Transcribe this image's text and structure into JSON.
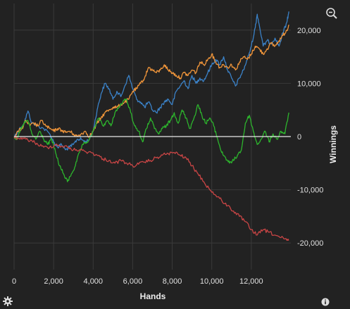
{
  "colors": {
    "background": "#222222",
    "grid": "#3a3a3a",
    "zero_line": "#e8e8e8",
    "blue": "#3b82c8",
    "orange": "#f0953a",
    "green": "#2db52d",
    "red": "#c94545"
  },
  "icons": {
    "zoom": "zoom-out-icon",
    "settings": "gear-icon",
    "info": "info-icon"
  },
  "chart_data": {
    "type": "line",
    "title": "",
    "xlabel": "Hands",
    "ylabel": "Winnings",
    "xlim": [
      0,
      14000
    ],
    "ylim": [
      -25000,
      25000
    ],
    "x_ticks": [
      0,
      2000,
      4000,
      6000,
      8000,
      10000,
      12000
    ],
    "x_tick_labels": [
      "0",
      "2,000",
      "4,000",
      "6,000",
      "8,000",
      "10,000",
      "12,000"
    ],
    "y_ticks": [
      -20000,
      -10000,
      0,
      10000,
      20000
    ],
    "y_tick_labels": [
      "-20,000",
      "-10,000",
      "0",
      "10,000",
      "20,000"
    ],
    "y_axis_position": "right",
    "grid": true,
    "zero_line": true,
    "series": [
      {
        "color": "#3b82c8",
        "points": [
          [
            0,
            0
          ],
          [
            200,
            1000
          ],
          [
            500,
            2500
          ],
          [
            700,
            4800
          ],
          [
            900,
            2500
          ],
          [
            1200,
            2000
          ],
          [
            1500,
            1500
          ],
          [
            1800,
            500
          ],
          [
            2000,
            -1000
          ],
          [
            2200,
            -2000
          ],
          [
            2400,
            -1500
          ],
          [
            2600,
            -2500
          ],
          [
            2800,
            -2000
          ],
          [
            3000,
            -1500
          ],
          [
            3200,
            -500
          ],
          [
            3400,
            -500
          ],
          [
            3600,
            -1000
          ],
          [
            3800,
            -500
          ],
          [
            4000,
            1000
          ],
          [
            4200,
            5000
          ],
          [
            4400,
            8000
          ],
          [
            4600,
            10000
          ],
          [
            4800,
            9000
          ],
          [
            5000,
            7000
          ],
          [
            5200,
            8500
          ],
          [
            5400,
            7500
          ],
          [
            5600,
            9500
          ],
          [
            5800,
            11500
          ],
          [
            6000,
            9000
          ],
          [
            6200,
            7000
          ],
          [
            6400,
            6500
          ],
          [
            6600,
            5500
          ],
          [
            6800,
            6500
          ],
          [
            7000,
            5000
          ],
          [
            7200,
            4500
          ],
          [
            7400,
            5500
          ],
          [
            7600,
            6500
          ],
          [
            7800,
            7000
          ],
          [
            8000,
            6000
          ],
          [
            8200,
            8500
          ],
          [
            8400,
            9500
          ],
          [
            8600,
            10500
          ],
          [
            8800,
            9000
          ],
          [
            9000,
            11500
          ],
          [
            9200,
            10000
          ],
          [
            9400,
            11000
          ],
          [
            9600,
            10500
          ],
          [
            9800,
            12000
          ],
          [
            10000,
            13500
          ],
          [
            10200,
            14500
          ],
          [
            10400,
            13500
          ],
          [
            10600,
            15000
          ],
          [
            10800,
            12500
          ],
          [
            11000,
            11000
          ],
          [
            11200,
            9500
          ],
          [
            11400,
            11000
          ],
          [
            11600,
            12500
          ],
          [
            11800,
            14500
          ],
          [
            12000,
            17000
          ],
          [
            12200,
            20500
          ],
          [
            12300,
            23000
          ],
          [
            12400,
            21000
          ],
          [
            12600,
            17000
          ],
          [
            12800,
            18000
          ],
          [
            13000,
            17500
          ],
          [
            13200,
            18500
          ],
          [
            13400,
            17000
          ],
          [
            13600,
            19500
          ],
          [
            13800,
            21500
          ],
          [
            13900,
            23500
          ]
        ]
      },
      {
        "color": "#f0953a",
        "points": [
          [
            0,
            0
          ],
          [
            200,
            1000
          ],
          [
            400,
            1500
          ],
          [
            600,
            3000
          ],
          [
            800,
            2000
          ],
          [
            1000,
            2500
          ],
          [
            1200,
            2000
          ],
          [
            1400,
            3000
          ],
          [
            1600,
            2000
          ],
          [
            1800,
            1500
          ],
          [
            2000,
            1000
          ],
          [
            2200,
            1500
          ],
          [
            2400,
            1200
          ],
          [
            2600,
            800
          ],
          [
            2800,
            1000
          ],
          [
            3000,
            500
          ],
          [
            3200,
            0
          ],
          [
            3400,
            500
          ],
          [
            3600,
            1000
          ],
          [
            3800,
            0
          ],
          [
            4000,
            1000
          ],
          [
            4200,
            2500
          ],
          [
            4400,
            3500
          ],
          [
            4600,
            4500
          ],
          [
            4800,
            5000
          ],
          [
            5000,
            5500
          ],
          [
            5200,
            5500
          ],
          [
            5400,
            6000
          ],
          [
            5600,
            6500
          ],
          [
            5800,
            7000
          ],
          [
            6000,
            8500
          ],
          [
            6200,
            9000
          ],
          [
            6400,
            10000
          ],
          [
            6600,
            11000
          ],
          [
            6800,
            13000
          ],
          [
            7000,
            12500
          ],
          [
            7200,
            12000
          ],
          [
            7400,
            12500
          ],
          [
            7600,
            13500
          ],
          [
            7800,
            12500
          ],
          [
            8000,
            12000
          ],
          [
            8200,
            11500
          ],
          [
            8400,
            11000
          ],
          [
            8600,
            12000
          ],
          [
            8800,
            11500
          ],
          [
            9000,
            12500
          ],
          [
            9200,
            12000
          ],
          [
            9400,
            14000
          ],
          [
            9600,
            13500
          ],
          [
            9800,
            14500
          ],
          [
            10000,
            15500
          ],
          [
            10200,
            14000
          ],
          [
            10400,
            13000
          ],
          [
            10600,
            13500
          ],
          [
            10800,
            13000
          ],
          [
            11000,
            13500
          ],
          [
            11200,
            12500
          ],
          [
            11400,
            14000
          ],
          [
            11600,
            15000
          ],
          [
            11800,
            14500
          ],
          [
            12000,
            15500
          ],
          [
            12200,
            17000
          ],
          [
            12400,
            16500
          ],
          [
            12600,
            15500
          ],
          [
            12800,
            16500
          ],
          [
            13000,
            17500
          ],
          [
            13200,
            17000
          ],
          [
            13400,
            18000
          ],
          [
            13600,
            19000
          ],
          [
            13800,
            20000
          ],
          [
            13900,
            21000
          ]
        ]
      },
      {
        "color": "#2db52d",
        "points": [
          [
            0,
            0
          ],
          [
            150,
            -500
          ],
          [
            300,
            1000
          ],
          [
            500,
            2500
          ],
          [
            700,
            3000
          ],
          [
            900,
            500
          ],
          [
            1100,
            -500
          ],
          [
            1300,
            1000
          ],
          [
            1500,
            -500
          ],
          [
            1700,
            -1500
          ],
          [
            1900,
            -500
          ],
          [
            2100,
            -3000
          ],
          [
            2300,
            -5500
          ],
          [
            2500,
            -7000
          ],
          [
            2700,
            -8500
          ],
          [
            2900,
            -7000
          ],
          [
            3100,
            -5500
          ],
          [
            3300,
            -3000
          ],
          [
            3500,
            -1500
          ],
          [
            3700,
            -1000
          ],
          [
            3900,
            0
          ],
          [
            4100,
            2000
          ],
          [
            4300,
            3500
          ],
          [
            4500,
            2000
          ],
          [
            4700,
            3000
          ],
          [
            4900,
            2000
          ],
          [
            5100,
            4500
          ],
          [
            5300,
            5500
          ],
          [
            5500,
            6500
          ],
          [
            5700,
            7000
          ],
          [
            5900,
            4500
          ],
          [
            6100,
            2000
          ],
          [
            6300,
            1000
          ],
          [
            6500,
            -1000
          ],
          [
            6700,
            1500
          ],
          [
            6900,
            3500
          ],
          [
            7100,
            1500
          ],
          [
            7300,
            500
          ],
          [
            7500,
            1500
          ],
          [
            7700,
            2000
          ],
          [
            7900,
            3000
          ],
          [
            8100,
            4500
          ],
          [
            8300,
            2500
          ],
          [
            8500,
            5000
          ],
          [
            8700,
            3500
          ],
          [
            8900,
            1500
          ],
          [
            9100,
            3500
          ],
          [
            9300,
            6000
          ],
          [
            9500,
            4000
          ],
          [
            9700,
            2500
          ],
          [
            9900,
            3500
          ],
          [
            10100,
            2000
          ],
          [
            10300,
            -500
          ],
          [
            10500,
            -3000
          ],
          [
            10700,
            -4000
          ],
          [
            10900,
            -5000
          ],
          [
            11100,
            -4500
          ],
          [
            11300,
            -3500
          ],
          [
            11500,
            -2500
          ],
          [
            11700,
            2500
          ],
          [
            11900,
            4000
          ],
          [
            12100,
            1000
          ],
          [
            12300,
            -1500
          ],
          [
            12500,
            -500
          ],
          [
            12700,
            1000
          ],
          [
            12900,
            -1000
          ],
          [
            13100,
            500
          ],
          [
            13300,
            -500
          ],
          [
            13500,
            1000
          ],
          [
            13700,
            500
          ],
          [
            13900,
            4500
          ]
        ]
      },
      {
        "color": "#c94545",
        "points": [
          [
            0,
            0
          ],
          [
            300,
            -500
          ],
          [
            600,
            -500
          ],
          [
            900,
            -800
          ],
          [
            1200,
            -1500
          ],
          [
            1500,
            -2000
          ],
          [
            1800,
            -2000
          ],
          [
            2100,
            -1500
          ],
          [
            2400,
            -1800
          ],
          [
            2700,
            -2000
          ],
          [
            3000,
            -2500
          ],
          [
            3300,
            -2500
          ],
          [
            3600,
            -2800
          ],
          [
            3900,
            -3000
          ],
          [
            4200,
            -3500
          ],
          [
            4500,
            -4200
          ],
          [
            4800,
            -4500
          ],
          [
            5100,
            -5000
          ],
          [
            5400,
            -4500
          ],
          [
            5700,
            -5000
          ],
          [
            6000,
            -5500
          ],
          [
            6300,
            -5200
          ],
          [
            6600,
            -4800
          ],
          [
            6900,
            -4500
          ],
          [
            7200,
            -4000
          ],
          [
            7500,
            -3500
          ],
          [
            7800,
            -3200
          ],
          [
            8100,
            -3000
          ],
          [
            8400,
            -3500
          ],
          [
            8700,
            -4000
          ],
          [
            9000,
            -5500
          ],
          [
            9300,
            -7000
          ],
          [
            9600,
            -8500
          ],
          [
            9900,
            -10000
          ],
          [
            10200,
            -11000
          ],
          [
            10500,
            -12000
          ],
          [
            10800,
            -13000
          ],
          [
            11100,
            -14000
          ],
          [
            11400,
            -15000
          ],
          [
            11700,
            -16000
          ],
          [
            12000,
            -17500
          ],
          [
            12300,
            -18500
          ],
          [
            12600,
            -17500
          ],
          [
            12900,
            -18000
          ],
          [
            13200,
            -18500
          ],
          [
            13500,
            -19000
          ],
          [
            13800,
            -19500
          ],
          [
            13900,
            -19500
          ]
        ]
      }
    ]
  }
}
